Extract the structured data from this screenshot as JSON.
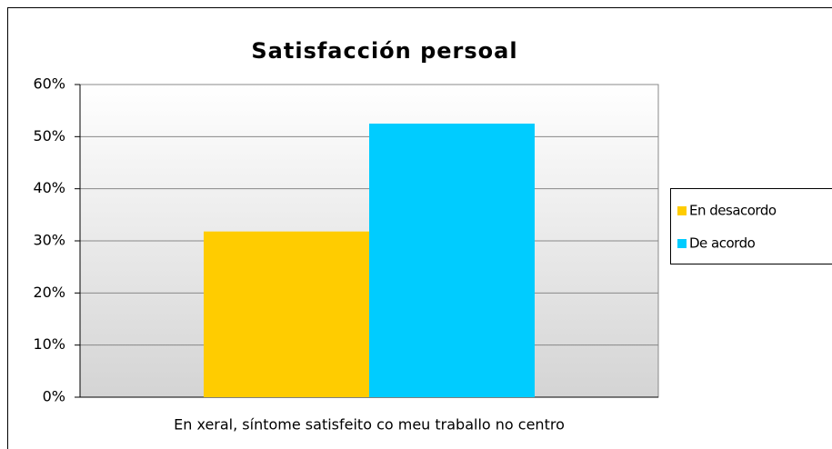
{
  "chart_data": {
    "type": "bar",
    "title": "Satisfacción persoal",
    "categories": [
      "En xeral, síntome satisfeito co meu traballo no centro"
    ],
    "series": [
      {
        "name": "En desacordo",
        "color": "#ffcc00",
        "values": [
          31.8
        ]
      },
      {
        "name": "De acordo",
        "color": "#00ccff",
        "values": [
          52.5
        ]
      }
    ],
    "ylim": [
      0,
      60
    ],
    "yticks": [
      {
        "value": 0,
        "label": "0%"
      },
      {
        "value": 10,
        "label": "10%"
      },
      {
        "value": 20,
        "label": "20%"
      },
      {
        "value": 30,
        "label": "30%"
      },
      {
        "value": 40,
        "label": "40%"
      },
      {
        "value": 50,
        "label": "50%"
      },
      {
        "value": 60,
        "label": "60%"
      }
    ],
    "grid": true,
    "legend": "right"
  }
}
